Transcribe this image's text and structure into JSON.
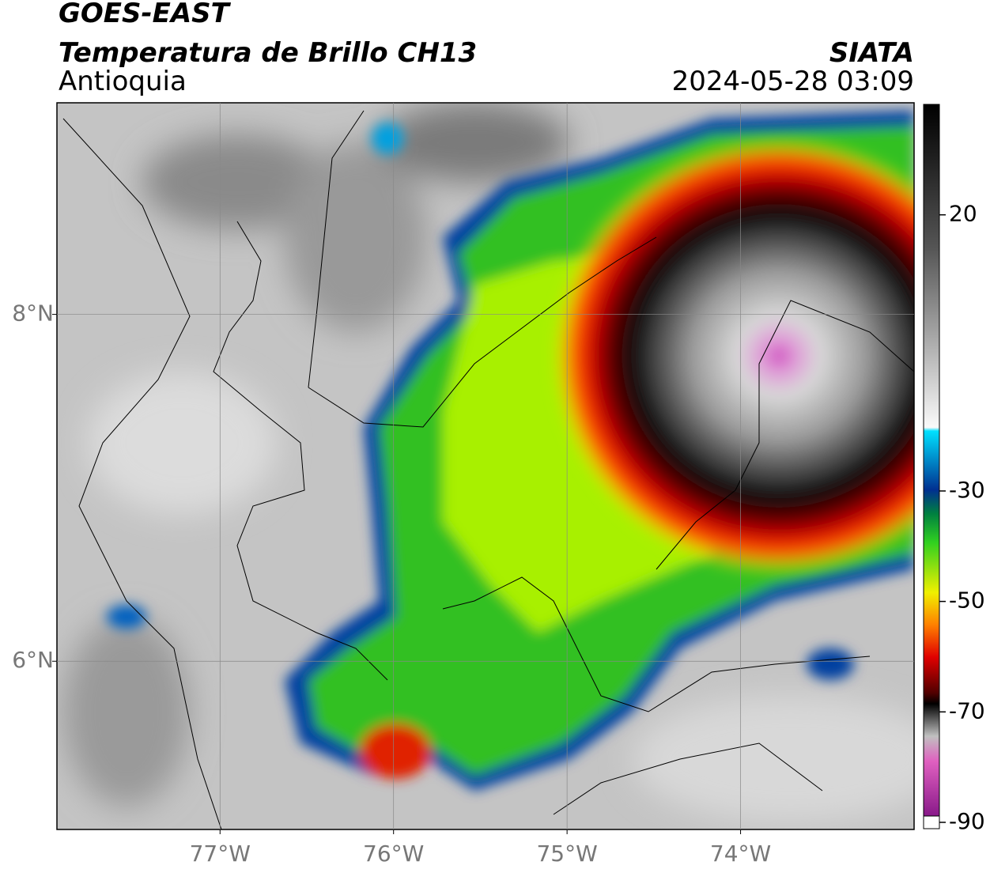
{
  "header": {
    "title": "GOES-EAST",
    "subtitle": "Temperatura de Brillo CH13",
    "region": "Antioquia",
    "source": "SIATA",
    "datetime": "2024-05-28 03:09"
  },
  "map": {
    "xlim": [
      -77.94,
      -73
    ],
    "ylim": [
      5.03,
      9.22
    ],
    "xticks": [
      {
        "value": -77,
        "label": "77°W"
      },
      {
        "value": -76,
        "label": "76°W"
      },
      {
        "value": -75,
        "label": "75°W"
      },
      {
        "value": -74,
        "label": "74°W"
      }
    ],
    "yticks": [
      {
        "value": 6,
        "label": "6°N"
      },
      {
        "value": 8,
        "label": "8°N"
      }
    ],
    "grid": true
  },
  "colorbar": {
    "lim": [
      -90,
      40
    ],
    "ticks": [
      -90,
      -70,
      -50,
      -30,
      20
    ]
  }
}
